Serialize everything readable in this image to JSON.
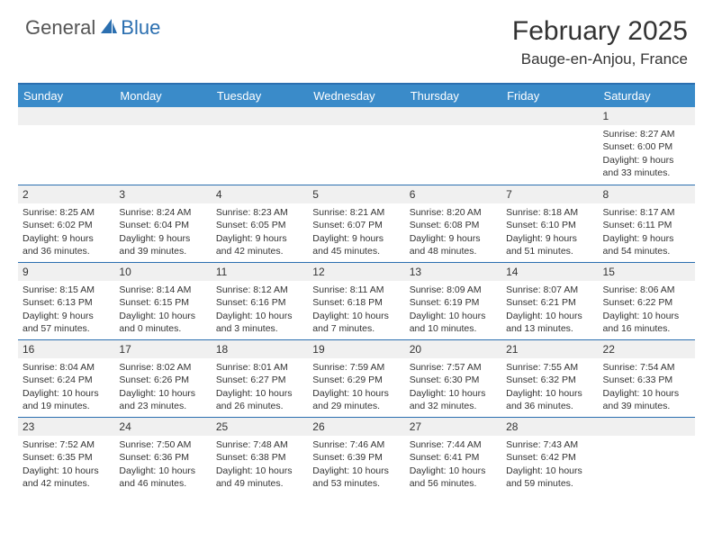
{
  "logo": {
    "part1": "General",
    "part2": "Blue"
  },
  "title": "February 2025",
  "location": "Bauge-en-Anjou, France",
  "colors": {
    "header_bar": "#3a8bc9",
    "accent_line": "#2b6fb0",
    "strip_bg": "#f0f0f0",
    "text": "#333333"
  },
  "days_of_week": [
    "Sunday",
    "Monday",
    "Tuesday",
    "Wednesday",
    "Thursday",
    "Friday",
    "Saturday"
  ],
  "weeks": [
    [
      {
        "n": "",
        "sr": "",
        "ss": "",
        "dl": ""
      },
      {
        "n": "",
        "sr": "",
        "ss": "",
        "dl": ""
      },
      {
        "n": "",
        "sr": "",
        "ss": "",
        "dl": ""
      },
      {
        "n": "",
        "sr": "",
        "ss": "",
        "dl": ""
      },
      {
        "n": "",
        "sr": "",
        "ss": "",
        "dl": ""
      },
      {
        "n": "",
        "sr": "",
        "ss": "",
        "dl": ""
      },
      {
        "n": "1",
        "sr": "Sunrise: 8:27 AM",
        "ss": "Sunset: 6:00 PM",
        "dl": "Daylight: 9 hours and 33 minutes."
      }
    ],
    [
      {
        "n": "2",
        "sr": "Sunrise: 8:25 AM",
        "ss": "Sunset: 6:02 PM",
        "dl": "Daylight: 9 hours and 36 minutes."
      },
      {
        "n": "3",
        "sr": "Sunrise: 8:24 AM",
        "ss": "Sunset: 6:04 PM",
        "dl": "Daylight: 9 hours and 39 minutes."
      },
      {
        "n": "4",
        "sr": "Sunrise: 8:23 AM",
        "ss": "Sunset: 6:05 PM",
        "dl": "Daylight: 9 hours and 42 minutes."
      },
      {
        "n": "5",
        "sr": "Sunrise: 8:21 AM",
        "ss": "Sunset: 6:07 PM",
        "dl": "Daylight: 9 hours and 45 minutes."
      },
      {
        "n": "6",
        "sr": "Sunrise: 8:20 AM",
        "ss": "Sunset: 6:08 PM",
        "dl": "Daylight: 9 hours and 48 minutes."
      },
      {
        "n": "7",
        "sr": "Sunrise: 8:18 AM",
        "ss": "Sunset: 6:10 PM",
        "dl": "Daylight: 9 hours and 51 minutes."
      },
      {
        "n": "8",
        "sr": "Sunrise: 8:17 AM",
        "ss": "Sunset: 6:11 PM",
        "dl": "Daylight: 9 hours and 54 minutes."
      }
    ],
    [
      {
        "n": "9",
        "sr": "Sunrise: 8:15 AM",
        "ss": "Sunset: 6:13 PM",
        "dl": "Daylight: 9 hours and 57 minutes."
      },
      {
        "n": "10",
        "sr": "Sunrise: 8:14 AM",
        "ss": "Sunset: 6:15 PM",
        "dl": "Daylight: 10 hours and 0 minutes."
      },
      {
        "n": "11",
        "sr": "Sunrise: 8:12 AM",
        "ss": "Sunset: 6:16 PM",
        "dl": "Daylight: 10 hours and 3 minutes."
      },
      {
        "n": "12",
        "sr": "Sunrise: 8:11 AM",
        "ss": "Sunset: 6:18 PM",
        "dl": "Daylight: 10 hours and 7 minutes."
      },
      {
        "n": "13",
        "sr": "Sunrise: 8:09 AM",
        "ss": "Sunset: 6:19 PM",
        "dl": "Daylight: 10 hours and 10 minutes."
      },
      {
        "n": "14",
        "sr": "Sunrise: 8:07 AM",
        "ss": "Sunset: 6:21 PM",
        "dl": "Daylight: 10 hours and 13 minutes."
      },
      {
        "n": "15",
        "sr": "Sunrise: 8:06 AM",
        "ss": "Sunset: 6:22 PM",
        "dl": "Daylight: 10 hours and 16 minutes."
      }
    ],
    [
      {
        "n": "16",
        "sr": "Sunrise: 8:04 AM",
        "ss": "Sunset: 6:24 PM",
        "dl": "Daylight: 10 hours and 19 minutes."
      },
      {
        "n": "17",
        "sr": "Sunrise: 8:02 AM",
        "ss": "Sunset: 6:26 PM",
        "dl": "Daylight: 10 hours and 23 minutes."
      },
      {
        "n": "18",
        "sr": "Sunrise: 8:01 AM",
        "ss": "Sunset: 6:27 PM",
        "dl": "Daylight: 10 hours and 26 minutes."
      },
      {
        "n": "19",
        "sr": "Sunrise: 7:59 AM",
        "ss": "Sunset: 6:29 PM",
        "dl": "Daylight: 10 hours and 29 minutes."
      },
      {
        "n": "20",
        "sr": "Sunrise: 7:57 AM",
        "ss": "Sunset: 6:30 PM",
        "dl": "Daylight: 10 hours and 32 minutes."
      },
      {
        "n": "21",
        "sr": "Sunrise: 7:55 AM",
        "ss": "Sunset: 6:32 PM",
        "dl": "Daylight: 10 hours and 36 minutes."
      },
      {
        "n": "22",
        "sr": "Sunrise: 7:54 AM",
        "ss": "Sunset: 6:33 PM",
        "dl": "Daylight: 10 hours and 39 minutes."
      }
    ],
    [
      {
        "n": "23",
        "sr": "Sunrise: 7:52 AM",
        "ss": "Sunset: 6:35 PM",
        "dl": "Daylight: 10 hours and 42 minutes."
      },
      {
        "n": "24",
        "sr": "Sunrise: 7:50 AM",
        "ss": "Sunset: 6:36 PM",
        "dl": "Daylight: 10 hours and 46 minutes."
      },
      {
        "n": "25",
        "sr": "Sunrise: 7:48 AM",
        "ss": "Sunset: 6:38 PM",
        "dl": "Daylight: 10 hours and 49 minutes."
      },
      {
        "n": "26",
        "sr": "Sunrise: 7:46 AM",
        "ss": "Sunset: 6:39 PM",
        "dl": "Daylight: 10 hours and 53 minutes."
      },
      {
        "n": "27",
        "sr": "Sunrise: 7:44 AM",
        "ss": "Sunset: 6:41 PM",
        "dl": "Daylight: 10 hours and 56 minutes."
      },
      {
        "n": "28",
        "sr": "Sunrise: 7:43 AM",
        "ss": "Sunset: 6:42 PM",
        "dl": "Daylight: 10 hours and 59 minutes."
      },
      {
        "n": "",
        "sr": "",
        "ss": "",
        "dl": ""
      }
    ]
  ]
}
